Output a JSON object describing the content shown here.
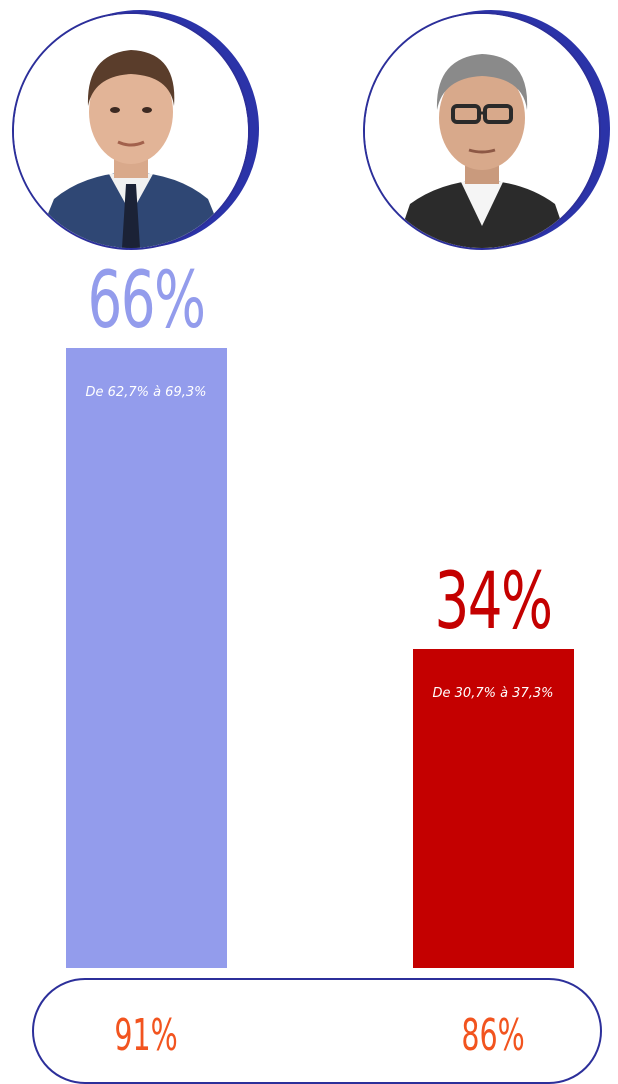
{
  "chart_data": {
    "type": "bar",
    "title": "",
    "xlabel": "",
    "ylabel": "",
    "ylim": [
      0,
      66
    ],
    "grid": false,
    "legend": "none",
    "categories": [
      "",
      ""
    ],
    "values": [
      66,
      34
    ],
    "value_labels": [
      "66%",
      "34%"
    ],
    "ranges": [
      "De 62,7% à 69,3%",
      "De 30,7% à 37,3%"
    ],
    "footer_values": [
      "91%",
      "86%"
    ],
    "footer_labels": [
      "91%",
      "86%"
    ],
    "colors": [
      "#939cec",
      "#c40000"
    ],
    "footer_color": "#f2541f",
    "frame_color": "#2c2f9a"
  },
  "icons": [
    "candidate-1-portrait-icon",
    "candidate-2-portrait-icon"
  ]
}
